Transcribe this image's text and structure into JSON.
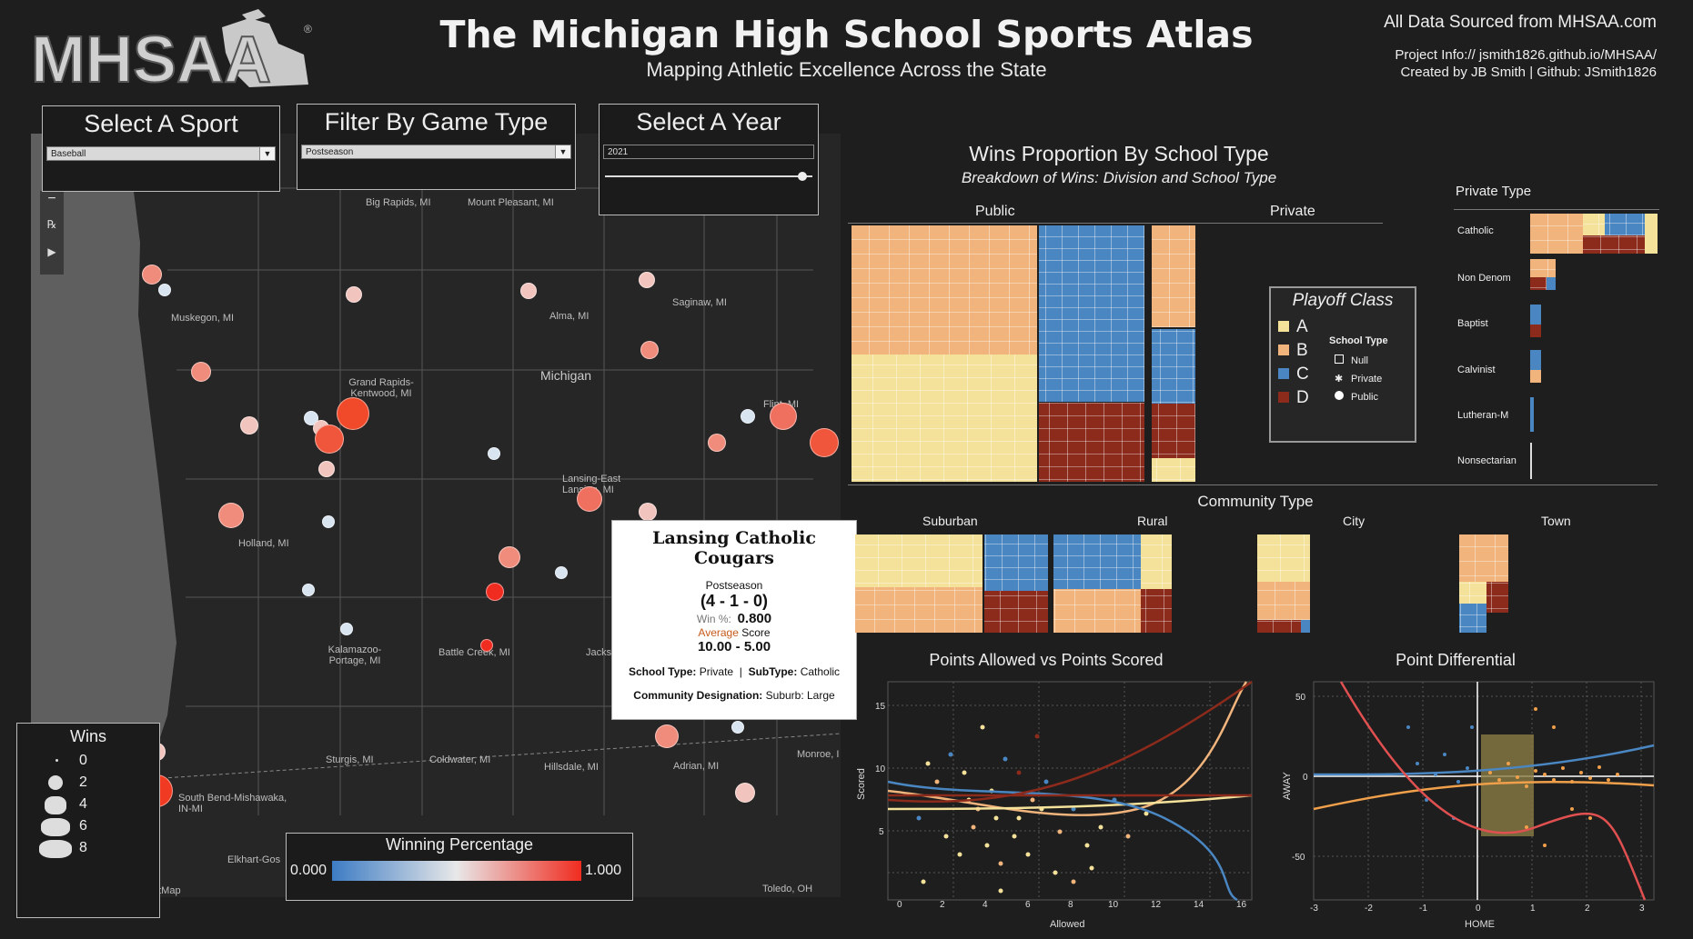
{
  "header": {
    "title": "The Michigan High School Sports Atlas",
    "subtitle": "Mapping Athletic Excellence Across the State",
    "logo_text": "MHSAA",
    "source": "All Data Sourced from MHSAA.com",
    "project_info": "Project Info:// jsmith1826.github.io/MHSAA/",
    "created_by": "Created by JB Smith | Github: JSmith1826"
  },
  "controls": {
    "sport": {
      "label": "Select A Sport",
      "value": "Baseball"
    },
    "game_type": {
      "label": "Filter By Game Type",
      "value": "Postseason"
    },
    "year": {
      "label": "Select A Year",
      "value": "2021"
    }
  },
  "map": {
    "attribution": "etMap",
    "state_label": "Michigan",
    "cities": [
      "Big Rapids, MI",
      "Mount Pleasant, MI",
      "Muskegon, MI",
      "Alma, MI",
      "Saginaw, MI",
      "Grand Rapids-Kentwood, MI",
      "Flint, MI",
      "Lansing-East Lansing, MI",
      "Holland, MI",
      "Kalamazoo-Portage, MI",
      "Battle Creek, MI",
      "Jackson",
      "Sturgis, MI",
      "Coldwater, MI",
      "Hillsdale, MI",
      "Adrian, MI",
      "Monroe, I",
      "South Bend-Mishawaka, IN-MI",
      "Elkhart-Gos",
      "Toledo, OH"
    ]
  },
  "tooltip": {
    "school": "Lansing Catholic Cougars",
    "game_type": "Postseason",
    "record": "(4 - 1 - 0)",
    "win_pct_label": "Win %:",
    "win_pct": "0.800",
    "avg_label_1": "Average",
    "avg_label_2": "Score",
    "avg_score": "10.00 -  5.00",
    "school_type_label": "School Type:",
    "school_type": "Private",
    "subtype_label": "SubType:",
    "subtype": "Catholic",
    "community_label": "Community Designation:",
    "community": "Suburb: Large"
  },
  "wins_legend": {
    "title": "Wins",
    "values": [
      "0",
      "2",
      "4",
      "6",
      "8"
    ]
  },
  "win_pct_legend": {
    "title": "Winning Percentage",
    "min": "0.000",
    "max": "1.000"
  },
  "treemap": {
    "title": "Wins Proportion By School Type",
    "subtitle": "Breakdown of Wins: Division and School Type",
    "public_label": "Public",
    "private_label": "Private",
    "private_type_label": "Private Type",
    "private_types": [
      "Catholic",
      "Non Denom",
      "Baptist",
      "Calvinist",
      "Lutheran-M",
      "Nonsectarian"
    ],
    "community_label": "Community Type",
    "communities": [
      "Suburban",
      "Rural",
      "City",
      "Town"
    ]
  },
  "playoff_legend": {
    "title": "Playoff Class",
    "classes": [
      {
        "label": "A",
        "color": "#f5e29a"
      },
      {
        "label": "B",
        "color": "#f0b47c"
      },
      {
        "label": "C",
        "color": "#4a87c2"
      },
      {
        "label": "D",
        "color": "#8c2a1c"
      }
    ],
    "school_type_title": "School Type",
    "school_types": [
      "Null",
      "Private",
      "Public"
    ]
  },
  "scatter1": {
    "title": "Points Allowed vs Points Scored",
    "xlabel": "Allowed",
    "ylabel": "Scored",
    "xticks": [
      "0",
      "2",
      "4",
      "6",
      "8",
      "10",
      "12",
      "14",
      "16"
    ],
    "yticks": [
      "15",
      "10",
      "5"
    ]
  },
  "scatter2": {
    "title": "Point Differential",
    "xlabel": "HOME",
    "ylabel": "AWAY",
    "xticks": [
      "-3",
      "-2",
      "-1",
      "0",
      "1",
      "2",
      "3"
    ],
    "yticks": [
      "50",
      "0",
      "-50"
    ]
  },
  "colors": {
    "accent_red": "#f0442a",
    "accent_blue": "#3d7cc4",
    "bg": "#1e1e1e"
  }
}
